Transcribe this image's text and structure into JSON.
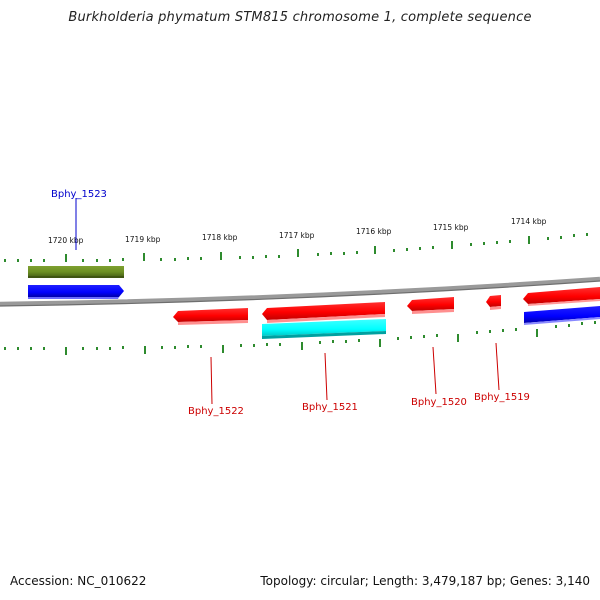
{
  "title": "Burkholderia phymatum STM815 chromosome 1, complete sequence",
  "footer": {
    "accession": "Accession: NC_010622",
    "info": "Topology: circular; Length: 3,479,187 bp; Genes: 3,140"
  },
  "colors": {
    "backbone": "#8a8a8a",
    "tick": "#2e8b2e",
    "forward_gene": "#ff0000",
    "reverse_gene": "#0000ff",
    "olive_feature": "#6b8e23",
    "cyan_feature": "#00ffff",
    "label_red": "#cc0000",
    "label_blue": "#0000cc"
  },
  "kbp_labels": [
    "1720 kbp",
    "1719 kbp",
    "1718 kbp",
    "1717 kbp",
    "1716 kbp",
    "1715 kbp",
    "1714 kbp"
  ],
  "gene_labels": [
    {
      "name": "Bphy_1523",
      "color": "label_blue"
    },
    {
      "name": "Bphy_1522",
      "color": "label_red"
    },
    {
      "name": "Bphy_1521",
      "color": "label_red"
    },
    {
      "name": "Bphy_1520",
      "color": "label_red"
    },
    {
      "name": "Bphy_1519",
      "color": "label_red"
    }
  ],
  "icons": {
    "forward_arrow": "gene-arrow-right-icon",
    "reverse_arrow": "gene-arrow-left-icon"
  }
}
